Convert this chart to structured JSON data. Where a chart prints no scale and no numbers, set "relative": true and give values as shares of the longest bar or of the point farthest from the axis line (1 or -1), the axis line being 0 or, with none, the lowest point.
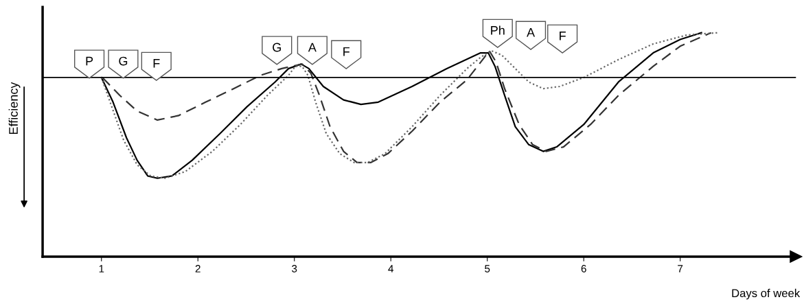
{
  "chart_data": {
    "type": "line",
    "relative": true,
    "xlabel": "Days of week",
    "ylabel": "Efficiency",
    "xlim": [
      0.39,
      8.2
    ],
    "xticks": [
      1,
      2,
      3,
      4,
      5,
      6,
      7
    ],
    "tick_labels": "x",
    "grid": false,
    "legend": false,
    "marker": "none",
    "ref_lines": [
      {
        "axis": "y",
        "value": 0.8,
        "label": null,
        "color": "#000000",
        "line_style": "solid"
      }
    ],
    "annotations": [
      "P",
      "G",
      "F",
      "G",
      "A",
      "F",
      "Ph",
      "A",
      "F"
    ],
    "series": [
      {
        "color": "#000000",
        "line_style": "solid",
        "x": [
          1.0,
          1.12,
          1.26,
          1.37,
          1.48,
          1.58,
          1.73,
          1.94,
          2.23,
          2.51,
          2.8,
          2.94,
          3.07,
          3.15,
          3.3,
          3.51,
          3.69,
          3.87,
          4.22,
          4.58,
          4.93,
          5.01,
          5.08,
          5.18,
          5.29,
          5.43,
          5.58,
          5.72,
          6.0,
          6.36,
          6.72,
          7.0,
          7.22
        ],
        "values": [
          0.8,
          0.69,
          0.53,
          0.43,
          0.36,
          0.35,
          0.36,
          0.43,
          0.55,
          0.67,
          0.78,
          0.84,
          0.86,
          0.84,
          0.76,
          0.7,
          0.68,
          0.69,
          0.76,
          0.84,
          0.91,
          0.91,
          0.85,
          0.72,
          0.58,
          0.5,
          0.47,
          0.49,
          0.59,
          0.78,
          0.91,
          0.97,
          1.0
        ]
      },
      {
        "color": "#333333",
        "line_style": "dashed",
        "x": [
          1.01,
          1.19,
          1.37,
          1.58,
          1.8,
          2.08,
          2.37,
          2.65,
          2.87,
          3.08,
          3.17,
          3.26,
          3.37,
          3.51,
          3.65,
          3.79,
          3.97,
          4.22,
          4.51,
          4.79,
          4.97,
          5.02,
          5.09,
          5.18,
          5.33,
          5.47,
          5.61,
          5.79,
          6.07,
          6.36,
          6.72,
          7.0,
          7.32
        ],
        "values": [
          0.8,
          0.72,
          0.65,
          0.61,
          0.63,
          0.69,
          0.75,
          0.81,
          0.84,
          0.86,
          0.82,
          0.72,
          0.58,
          0.47,
          0.42,
          0.42,
          0.46,
          0.56,
          0.69,
          0.79,
          0.89,
          0.92,
          0.87,
          0.75,
          0.59,
          0.5,
          0.47,
          0.49,
          0.59,
          0.72,
          0.85,
          0.94,
          1.0
        ]
      },
      {
        "color": "#666666",
        "line_style": "dotted",
        "x": [
          1.0,
          1.09,
          1.23,
          1.37,
          1.51,
          1.66,
          1.87,
          2.15,
          2.44,
          2.72,
          2.94,
          3.01,
          3.08,
          3.14,
          3.22,
          3.33,
          3.47,
          3.62,
          3.76,
          3.94,
          4.22,
          4.51,
          4.79,
          4.93,
          5.04,
          5.15,
          5.29,
          5.43,
          5.58,
          5.75,
          6.0,
          6.36,
          6.72,
          7.07,
          7.39
        ],
        "values": [
          0.8,
          0.69,
          0.52,
          0.41,
          0.36,
          0.35,
          0.38,
          0.47,
          0.59,
          0.72,
          0.81,
          0.85,
          0.85,
          0.81,
          0.69,
          0.55,
          0.46,
          0.42,
          0.42,
          0.46,
          0.58,
          0.72,
          0.84,
          0.89,
          0.92,
          0.9,
          0.84,
          0.78,
          0.75,
          0.76,
          0.8,
          0.88,
          0.95,
          0.99,
          1.0
        ]
      }
    ]
  }
}
